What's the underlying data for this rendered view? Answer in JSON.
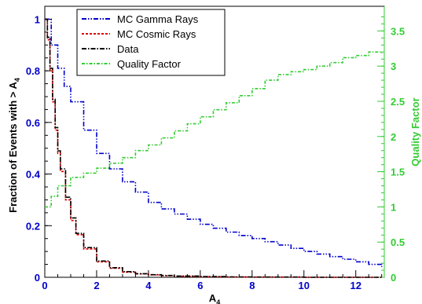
{
  "chart_data": {
    "type": "line",
    "title": "",
    "xlabel": "A",
    "xlabel_sub": "4",
    "ylabel": "Fraction of Events with > A",
    "ylabel_sub": "4",
    "y2label": "Quality Factor",
    "xlim": [
      0,
      13.1
    ],
    "ylim": [
      0,
      1.05
    ],
    "y2lim": [
      0,
      3.85
    ],
    "x_ticks": [
      "0",
      "2",
      "4",
      "6",
      "8",
      "10",
      "12"
    ],
    "y_ticks": [
      "0",
      "0.2",
      "0.4",
      "0.6",
      "0.8",
      "1"
    ],
    "y2_ticks": [
      "0",
      "0.5",
      "1",
      "1.5",
      "2",
      "2.5",
      "3",
      "3.5"
    ],
    "legend_position": "top-center",
    "series": [
      {
        "name": "MC Gamma Rays",
        "axis": "left",
        "color": "#0000cc",
        "dash": "dash-dot-dot",
        "x": [
          0,
          0.25,
          0.5,
          0.75,
          1,
          1.5,
          2,
          2.5,
          3,
          3.5,
          4,
          4.5,
          5,
          5.5,
          6,
          6.5,
          7,
          7.5,
          8,
          8.5,
          9,
          9.5,
          10,
          10.5,
          11,
          11.5,
          12,
          12.5,
          13
        ],
        "values": [
          1.0,
          0.9,
          0.81,
          0.74,
          0.68,
          0.57,
          0.48,
          0.42,
          0.37,
          0.33,
          0.29,
          0.265,
          0.245,
          0.225,
          0.205,
          0.19,
          0.175,
          0.162,
          0.15,
          0.138,
          0.125,
          0.112,
          0.1,
          0.09,
          0.08,
          0.07,
          0.06,
          0.05,
          0.04
        ]
      },
      {
        "name": "MC Cosmic Rays",
        "axis": "left",
        "color": "#dd0000",
        "dash": "dashed",
        "x": [
          0,
          0.1,
          0.2,
          0.3,
          0.4,
          0.5,
          0.6,
          0.8,
          1,
          1.2,
          1.5,
          2,
          2.5,
          3,
          3.5,
          4,
          4.5,
          5,
          6,
          7,
          8,
          10,
          13
        ],
        "values": [
          1.0,
          0.92,
          0.8,
          0.68,
          0.57,
          0.48,
          0.41,
          0.3,
          0.22,
          0.165,
          0.11,
          0.06,
          0.035,
          0.02,
          0.013,
          0.009,
          0.006,
          0.004,
          0.002,
          0.001,
          0.0005,
          0.0,
          0.0
        ]
      },
      {
        "name": "Data",
        "axis": "left",
        "color": "#000000",
        "dash": "dash-dot",
        "x": [
          0,
          0.1,
          0.2,
          0.3,
          0.4,
          0.5,
          0.6,
          0.8,
          1,
          1.2,
          1.5,
          2,
          2.5,
          3,
          3.5,
          4,
          4.5,
          5,
          6,
          7,
          8,
          10,
          13
        ],
        "values": [
          1.0,
          0.93,
          0.81,
          0.69,
          0.58,
          0.49,
          0.42,
          0.31,
          0.23,
          0.17,
          0.115,
          0.063,
          0.037,
          0.022,
          0.014,
          0.01,
          0.007,
          0.005,
          0.003,
          0.0015,
          0.0008,
          0.0,
          0.0
        ]
      },
      {
        "name": "Quality Factor",
        "axis": "right",
        "color": "#33cc33",
        "dash": "dash-dot-small",
        "x": [
          0,
          0.25,
          0.5,
          1,
          1.5,
          2,
          2.5,
          3,
          3.5,
          4,
          4.5,
          5,
          5.5,
          6,
          6.5,
          7,
          7.5,
          8,
          8.5,
          9,
          9.5,
          10,
          10.5,
          11,
          11.5,
          12,
          12.5,
          13
        ],
        "values": [
          1.0,
          1.15,
          1.3,
          1.42,
          1.48,
          1.55,
          1.62,
          1.7,
          1.8,
          1.88,
          1.98,
          2.08,
          2.18,
          2.28,
          2.38,
          2.48,
          2.58,
          2.68,
          2.8,
          2.88,
          2.92,
          2.95,
          3.0,
          3.05,
          3.12,
          3.15,
          3.2,
          3.18
        ]
      }
    ]
  }
}
